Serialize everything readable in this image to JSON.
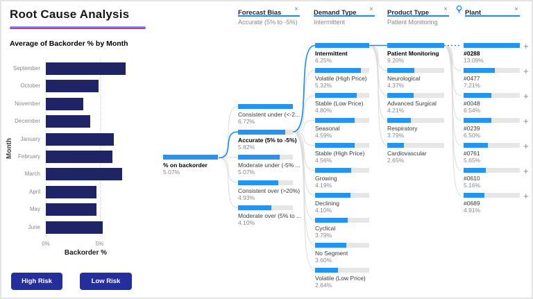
{
  "left_panel": {
    "title": "Root Cause Analysis",
    "buttons": [
      {
        "label": "High Risk"
      },
      {
        "label": "Low Risk"
      }
    ]
  },
  "chart_data": {
    "type": "bar",
    "orientation": "horizontal",
    "title": "Average of Backorder % by Month",
    "categories": [
      "September",
      "October",
      "November",
      "December",
      "January",
      "February",
      "March",
      "April",
      "May",
      "June"
    ],
    "values": [
      7.4,
      4.9,
      3.5,
      4.1,
      6.3,
      6.2,
      7.1,
      4.7,
      4.7,
      5.3
    ],
    "xlabel": "Backorder %",
    "ylabel": "Month",
    "xlim": [
      0,
      7.6
    ],
    "xticks": [
      {
        "label": "0%",
        "value": 0
      },
      {
        "label": "5%",
        "value": 5
      }
    ],
    "bar_color": "#1f2466",
    "grid": "dotted-vertical"
  },
  "buttons_color": "#242f9b",
  "tree": {
    "root": {
      "label": "% on backorder",
      "display": "5.07%",
      "value": 5.07
    },
    "columns": [
      {
        "header": "Forecast Bias",
        "subtitle": "Accurate (5% to -5%)",
        "close": "×",
        "has_bulb": false,
        "expandable": false,
        "nodes": [
          {
            "label": "Consistent under (<-2...",
            "display": "6.72%",
            "value": 6.72,
            "selected": false
          },
          {
            "label": "Accurate (5% to -5%)",
            "display": "5.82%",
            "value": 5.82,
            "selected": true
          },
          {
            "label": "Moderate under (-5% ...",
            "display": "5.07%",
            "value": 5.07,
            "selected": false
          },
          {
            "label": "Consistent over (>20%)",
            "display": "4.93%",
            "value": 4.93,
            "selected": false
          },
          {
            "label": "Moderate over (5% to ...",
            "display": "4.10%",
            "value": 4.1,
            "selected": false
          }
        ]
      },
      {
        "header": "Demand Type",
        "subtitle": "Intermittent",
        "close": "×",
        "has_bulb": false,
        "expandable": false,
        "nodes": [
          {
            "label": "Intermittent",
            "display": "6.25%",
            "value": 6.25,
            "selected": true
          },
          {
            "label": "Volatile (High Price)",
            "display": "5.32%",
            "value": 5.32,
            "selected": false
          },
          {
            "label": "Stable (Low Price)",
            "display": "4.80%",
            "value": 4.8,
            "selected": false
          },
          {
            "label": "Seasonal",
            "display": "4.59%",
            "value": 4.59,
            "selected": false
          },
          {
            "label": "Stable (High Price)",
            "display": "4.56%",
            "value": 4.56,
            "selected": false
          },
          {
            "label": "Growing",
            "display": "4.19%",
            "value": 4.19,
            "selected": false
          },
          {
            "label": "Declining",
            "display": "4.10%",
            "value": 4.1,
            "selected": false
          },
          {
            "label": "Cyclical",
            "display": "3.79%",
            "value": 3.79,
            "selected": false
          },
          {
            "label": "No Segment",
            "display": "3.60%",
            "value": 3.6,
            "selected": false
          },
          {
            "label": "Volatile (Low Price)",
            "display": "2.64%",
            "value": 2.64,
            "selected": false
          }
        ]
      },
      {
        "header": "Product Type",
        "subtitle": "Patient Monitoring",
        "close": "×",
        "has_bulb": false,
        "expandable": false,
        "nodes": [
          {
            "label": "Patient Monitoring",
            "display": "9.20%",
            "value": 9.2,
            "selected": true
          },
          {
            "label": "Neurological",
            "display": "4.37%",
            "value": 4.37,
            "selected": false
          },
          {
            "label": "Advanced Surgical",
            "display": "4.21%",
            "value": 4.21,
            "selected": false
          },
          {
            "label": "Respiratory",
            "display": "3.79%",
            "value": 3.79,
            "selected": false
          },
          {
            "label": "Cardiovascular",
            "display": "2.65%",
            "value": 2.65,
            "selected": false
          }
        ]
      },
      {
        "header": "Plant",
        "subtitle": "",
        "close": "×",
        "has_bulb": true,
        "expandable": true,
        "nodes": [
          {
            "label": "#0288",
            "display": "13.09%",
            "value": 13.09,
            "selected": true
          },
          {
            "label": "#0477",
            "display": "7.21%",
            "value": 7.21,
            "selected": false
          },
          {
            "label": "#0048",
            "display": "6.54%",
            "value": 6.54,
            "selected": false
          },
          {
            "label": "#0239",
            "display": "6.50%",
            "value": 6.5,
            "selected": false
          },
          {
            "label": "#0761",
            "display": "5.65%",
            "value": 5.65,
            "selected": false
          },
          {
            "label": "#0610",
            "display": "5.16%",
            "value": 5.16,
            "selected": false
          },
          {
            "label": "#0689",
            "display": "4.91%",
            "value": 4.91,
            "selected": false
          }
        ]
      }
    ],
    "colors": {
      "bar_fill": "#2494f4",
      "bar_track": "#e6e6e6",
      "link": "#dcdcdc",
      "link_selected": "#118dff",
      "header_underline": "#118dff"
    }
  }
}
